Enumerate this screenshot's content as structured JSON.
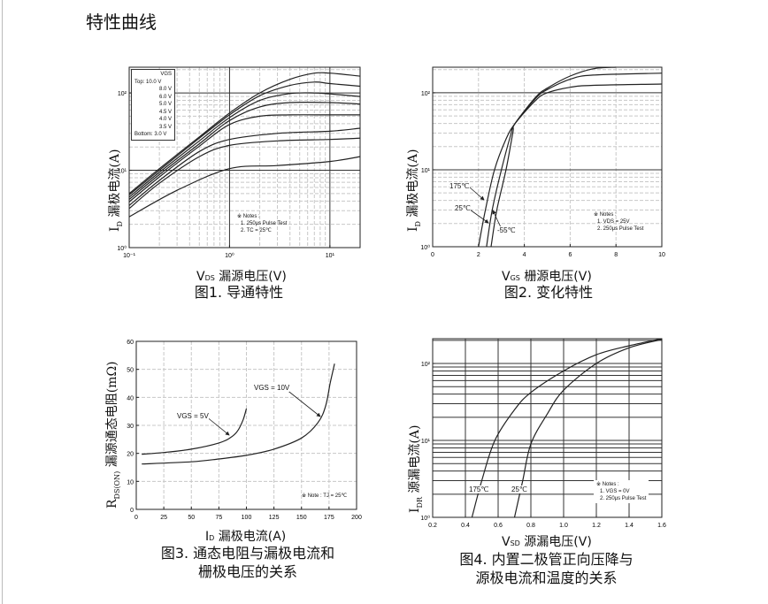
{
  "page_title": "特性曲线",
  "figures": [
    {
      "xlabel_sym": "V",
      "xlabel_sub": "DS",
      "xlabel_text": "漏源电压(V)",
      "ylabel_sym": "I",
      "ylabel_sub": "D",
      "ylabel_text": "漏极电流(A)",
      "caption": "图1. 导通特性",
      "legend": {
        "header": "VGS",
        "rows": [
          "Top:    10.0 V",
          "8.0 V",
          "6.0 V",
          "5.0 V",
          "4.5 V",
          "4.0 V",
          "3.5 V",
          "Bottom: 3.0 V"
        ]
      },
      "notes": [
        "※ Notes :",
        "1. 250μs Pulse Test",
        "2. TC = 25℃"
      ]
    },
    {
      "xlabel_sym": "V",
      "xlabel_sub": "GS",
      "xlabel_text": "栅源电压(V)",
      "ylabel_sym": "I",
      "ylabel_sub": "D",
      "ylabel_text": "漏极电流(A)",
      "caption": "图2. 变化特性",
      "notes": [
        "※ Notes :",
        "1. VDS = 25V",
        "2. 250μs Pulse Test"
      ]
    },
    {
      "xlabel_sym": "I",
      "xlabel_sub": "D",
      "xlabel_text": "漏极电流(A)",
      "ylabel_sym": "R",
      "ylabel_sub": "DS(ON)",
      "ylabel_text": "漏源通态电阻(mΩ)",
      "caption_lines": [
        "图3. 通态电阻与漏极电流和",
        "栅极电压的关系"
      ],
      "notes": [
        "※ Note : TJ = 25℃"
      ]
    },
    {
      "xlabel_sym": "V",
      "xlabel_sub": "SD",
      "xlabel_text": "源漏电压(V)",
      "ylabel_sym": "I",
      "ylabel_sub": "DR",
      "ylabel_text": "源漏电流(A)",
      "caption_lines": [
        "图4. 内置二极管正向压降与",
        "源极电流和温度的关系"
      ],
      "notes": [
        "※ Notes :",
        "1. VGS = 0V",
        "2. 250μs Pulse Test"
      ]
    }
  ],
  "chart_data": [
    {
      "type": "line",
      "xscale": "log",
      "yscale": "log",
      "xlim": [
        0.1,
        20
      ],
      "ylim": [
        1,
        215
      ],
      "grid": true,
      "legend_position": "top-left",
      "xticks": [
        {
          "v": 0.1,
          "label": "10⁻¹"
        },
        {
          "v": 1,
          "label": "10⁰"
        },
        {
          "v": 10,
          "label": "10¹"
        }
      ],
      "yticks": [
        {
          "v": 1,
          "label": "10⁰"
        },
        {
          "v": 10,
          "label": "10¹"
        },
        {
          "v": 100,
          "label": "10²"
        }
      ],
      "series": [
        {
          "name": "10.0 V",
          "points": [
            [
              0.1,
              5
            ],
            [
              0.2,
              10.5
            ],
            [
              0.5,
              27
            ],
            [
              1,
              55
            ],
            [
              2,
              100
            ],
            [
              4,
              150
            ],
            [
              7,
              180
            ],
            [
              10,
              180
            ],
            [
              20,
              165
            ]
          ]
        },
        {
          "name": "8.0 V",
          "points": [
            [
              0.1,
              4.8
            ],
            [
              0.2,
              10
            ],
            [
              0.5,
              26
            ],
            [
              1,
              52
            ],
            [
              2,
              92
            ],
            [
              4,
              125
            ],
            [
              7,
              138
            ],
            [
              10,
              132
            ],
            [
              20,
              122
            ]
          ]
        },
        {
          "name": "6.0 V",
          "points": [
            [
              0.1,
              4.5
            ],
            [
              0.2,
              9.4
            ],
            [
              0.5,
              24
            ],
            [
              1,
              48
            ],
            [
              2,
              80
            ],
            [
              4,
              98
            ],
            [
              7,
              100
            ],
            [
              10,
              97
            ],
            [
              20,
              90
            ]
          ]
        },
        {
          "name": "5.0 V",
          "points": [
            [
              0.1,
              4.2
            ],
            [
              0.2,
              8.8
            ],
            [
              0.5,
              22
            ],
            [
              1,
              44
            ],
            [
              2,
              66
            ],
            [
              4,
              75
            ],
            [
              10,
              75
            ],
            [
              20,
              72
            ]
          ]
        },
        {
          "name": "4.5 V",
          "points": [
            [
              0.1,
              3.9
            ],
            [
              0.2,
              8.2
            ],
            [
              0.5,
              20.5
            ],
            [
              1,
              39
            ],
            [
              2,
              50
            ],
            [
              4,
              52
            ],
            [
              10,
              52
            ],
            [
              20,
              52
            ]
          ]
        },
        {
          "name": "4.0 V",
          "points": [
            [
              0.1,
              3.5
            ],
            [
              0.2,
              7.4
            ],
            [
              0.5,
              17.5
            ],
            [
              1,
              25
            ],
            [
              3,
              30
            ],
            [
              10,
              32
            ],
            [
              20,
              35
            ]
          ]
        },
        {
          "name": "3.5 V",
          "points": [
            [
              0.1,
              3.2
            ],
            [
              0.2,
              6.8
            ],
            [
              0.5,
              15
            ],
            [
              1,
              21
            ],
            [
              3,
              24
            ],
            [
              10,
              25
            ],
            [
              20,
              26
            ]
          ]
        },
        {
          "name": "3.0 V",
          "points": [
            [
              0.1,
              2.5
            ],
            [
              0.3,
              5.5
            ],
            [
              1,
              10.5
            ],
            [
              3,
              11.5
            ],
            [
              10,
              13
            ],
            [
              20,
              15
            ]
          ]
        }
      ]
    },
    {
      "type": "line",
      "xscale": "linear",
      "yscale": "log",
      "xlim": [
        0,
        10
      ],
      "ylim": [
        1,
        215
      ],
      "grid": true,
      "xticks": [
        {
          "v": 0,
          "label": "0"
        },
        {
          "v": 2,
          "label": "2"
        },
        {
          "v": 4,
          "label": "4"
        },
        {
          "v": 6,
          "label": "6"
        },
        {
          "v": 8,
          "label": "8"
        },
        {
          "v": 10,
          "label": "10"
        }
      ],
      "yticks": [
        {
          "v": 1,
          "label": "10⁰"
        },
        {
          "v": 10,
          "label": "10¹"
        },
        {
          "v": 100,
          "label": "10²"
        }
      ],
      "series": [
        {
          "name": "175℃",
          "points": [
            [
              2.0,
              1
            ],
            [
              2.3,
              3
            ],
            [
              2.7,
              10
            ],
            [
              3.2,
              25
            ],
            [
              3.6,
              40
            ],
            [
              4.5,
              80
            ],
            [
              5,
              100
            ],
            [
              6,
              118
            ],
            [
              7,
              125
            ],
            [
              10,
              130
            ]
          ]
        },
        {
          "name": "25℃",
          "points": [
            [
              2.35,
              1
            ],
            [
              2.6,
              3
            ],
            [
              3.0,
              10
            ],
            [
              3.4,
              28
            ],
            [
              3.6,
              40
            ],
            [
              4.5,
              85
            ],
            [
              5,
              110
            ],
            [
              6,
              150
            ],
            [
              7,
              170
            ],
            [
              10,
              180
            ]
          ]
        },
        {
          "name": "-55℃",
          "points": [
            [
              2.55,
              1
            ],
            [
              2.8,
              3
            ],
            [
              3.2,
              10
            ],
            [
              3.5,
              30
            ],
            [
              3.6,
              40
            ],
            [
              4.5,
              88
            ],
            [
              5,
              115
            ],
            [
              6,
              165
            ],
            [
              7,
              205
            ],
            [
              8,
              215
            ]
          ]
        }
      ]
    },
    {
      "type": "line",
      "xscale": "linear",
      "yscale": "linear",
      "xlim": [
        0,
        200
      ],
      "ylim": [
        0,
        60
      ],
      "grid": true,
      "xtick_values": [
        0,
        25,
        50,
        75,
        100,
        125,
        150,
        175,
        200
      ],
      "ytick_values": [
        0,
        10,
        20,
        30,
        40,
        50,
        60
      ],
      "series": [
        {
          "name": "VGS = 5V",
          "points": [
            [
              5,
              19.7
            ],
            [
              25,
              20.3
            ],
            [
              50,
              21.5
            ],
            [
              75,
              23.7
            ],
            [
              85,
              25.5
            ],
            [
              92,
              28
            ],
            [
              97,
              32
            ],
            [
              100,
              36
            ]
          ]
        },
        {
          "name": "VGS = 10V",
          "points": [
            [
              5,
              16.2
            ],
            [
              50,
              17
            ],
            [
              75,
              18
            ],
            [
              100,
              19.3
            ],
            [
              125,
              21.5
            ],
            [
              150,
              25.5
            ],
            [
              165,
              31
            ],
            [
              172,
              37
            ],
            [
              176,
              45
            ],
            [
              180,
              52
            ]
          ]
        }
      ]
    },
    {
      "type": "line",
      "xscale": "linear",
      "yscale": "log",
      "xlim": [
        0.2,
        1.6
      ],
      "ylim": [
        1,
        210
      ],
      "grid": true,
      "xtick_values": [
        "0.2",
        "0.4",
        "0.6",
        "0.8",
        "1.0",
        "1.2",
        "1.4",
        "1.6"
      ],
      "yticks": [
        {
          "v": 1,
          "label": "10⁰"
        },
        {
          "v": 10,
          "label": "10¹"
        },
        {
          "v": 100,
          "label": "10²"
        }
      ],
      "series": [
        {
          "name": "175℃",
          "points": [
            [
              0.44,
              1
            ],
            [
              0.5,
              3
            ],
            [
              0.58,
              10
            ],
            [
              0.7,
              25
            ],
            [
              0.8,
              42
            ],
            [
              1.0,
              80
            ],
            [
              1.2,
              130
            ],
            [
              1.4,
              170
            ],
            [
              1.6,
              210
            ]
          ]
        },
        {
          "name": "25℃",
          "points": [
            [
              0.7,
              1
            ],
            [
              0.75,
              3
            ],
            [
              0.8,
              9
            ],
            [
              0.9,
              22
            ],
            [
              1.0,
              45
            ],
            [
              1.2,
              100
            ],
            [
              1.4,
              160
            ],
            [
              1.6,
              205
            ]
          ]
        }
      ]
    }
  ]
}
